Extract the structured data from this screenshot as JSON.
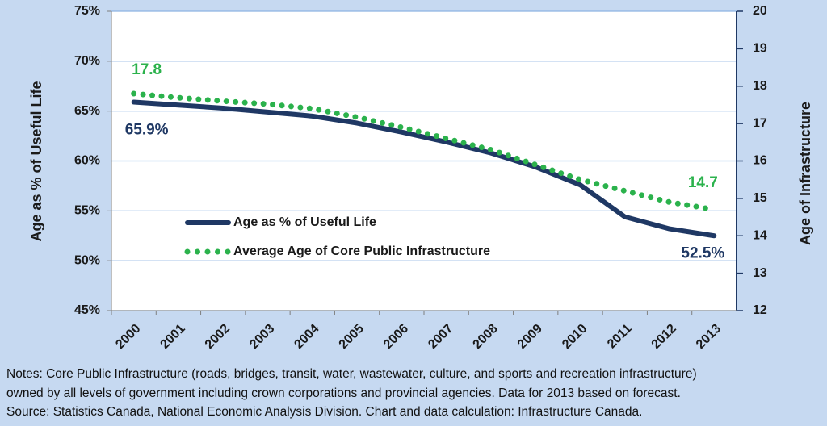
{
  "chart_data": {
    "type": "line",
    "y_label": "Age as % of Useful Life",
    "y2_label": "Age of Infrastructure",
    "categories": [
      "2000",
      "2001",
      "2002",
      "2003",
      "2004",
      "2005",
      "2006",
      "2007",
      "2008",
      "2009",
      "2010",
      "2011",
      "2012",
      "2013"
    ],
    "series": [
      {
        "name": "Age as % of Useful Life",
        "color": "#1f3864",
        "axis": "y",
        "values": [
          65.9,
          65.6,
          65.3,
          64.9,
          64.5,
          63.8,
          62.9,
          61.9,
          60.8,
          59.4,
          57.6,
          54.4,
          53.2,
          52.5
        ],
        "value_labels": [
          "65.9%",
          null,
          null,
          null,
          null,
          null,
          null,
          null,
          null,
          null,
          null,
          null,
          null,
          "52.5%"
        ]
      },
      {
        "name": "Average Age of Core Public Infrastructure",
        "color": "#2bb24c",
        "axis": "y2",
        "values": [
          17.8,
          17.69,
          17.6,
          17.52,
          17.4,
          17.17,
          16.9,
          16.6,
          16.3,
          15.9,
          15.5,
          15.2,
          14.9,
          14.7
        ],
        "value_labels": [
          "17.8",
          null,
          null,
          null,
          null,
          null,
          null,
          null,
          null,
          null,
          null,
          null,
          null,
          "14.7"
        ]
      }
    ],
    "ylim": [
      45,
      75
    ],
    "yticks": [
      {
        "value": 45,
        "label": "45%"
      },
      {
        "value": 50,
        "label": "50%"
      },
      {
        "value": 55,
        "label": "55%"
      },
      {
        "value": 60,
        "label": "60%"
      },
      {
        "value": 65,
        "label": "65%"
      },
      {
        "value": 70,
        "label": "70%"
      },
      {
        "value": 75,
        "label": "75%"
      }
    ],
    "y2lim": [
      12,
      20
    ],
    "y2ticks": [
      12,
      13,
      14,
      15,
      16,
      17,
      18,
      19,
      20
    ],
    "grid": true,
    "notes": [
      "Notes: Core Public Infrastructure (roads, bridges, transit, water, wastewater, culture, and sports and recreation infrastructure)",
      "owned by all levels of government including crown corporations and provincial agencies.  Data for 2013 based on forecast.",
      "Source: Statistics Canada, National Economic Analysis Division.  Chart and data calculation: Infrastructure Canada."
    ]
  }
}
